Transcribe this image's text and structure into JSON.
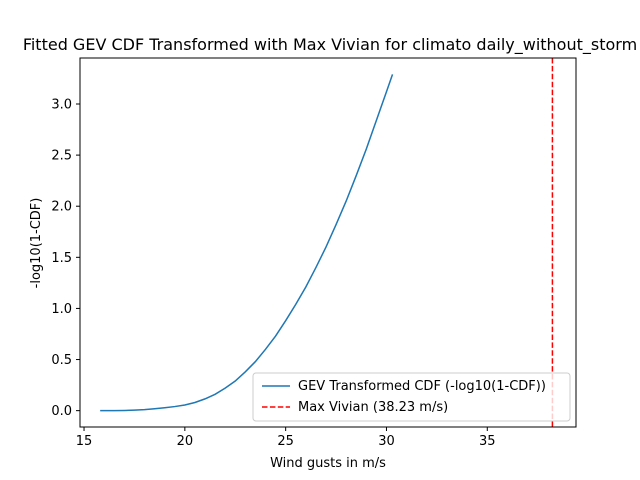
{
  "chart_data": {
    "type": "line",
    "title": "Fitted GEV CDF Transformed with Max Vivian for climato daily_without_storm",
    "xlabel": "Wind gusts in m/s",
    "ylabel": "-log10(1-CDF)",
    "xlim": [
      14.8,
      39.4
    ],
    "ylim": [
      -0.16,
      3.45
    ],
    "xticks": [
      15,
      20,
      25,
      30,
      35
    ],
    "xtick_labels": [
      "15",
      "20",
      "25",
      "30",
      "35"
    ],
    "yticks": [
      0.0,
      0.5,
      1.0,
      1.5,
      2.0,
      2.5,
      3.0
    ],
    "ytick_labels": [
      "0.0",
      "0.5",
      "1.0",
      "1.5",
      "2.0",
      "2.5",
      "3.0"
    ],
    "grid": false,
    "legend_position": "lower right",
    "series": [
      {
        "name": "GEV Transformed CDF (-log10(1-CDF))",
        "style": "solid",
        "color": "#1f77b4",
        "x": [
          15.8,
          16.5,
          17.0,
          17.5,
          18.0,
          18.5,
          19.0,
          19.5,
          20.0,
          20.5,
          21.0,
          21.5,
          22.0,
          22.5,
          23.0,
          23.5,
          24.0,
          24.5,
          25.0,
          25.5,
          26.0,
          26.5,
          27.0,
          27.5,
          28.0,
          28.5,
          29.0,
          29.5,
          30.0,
          30.3
        ],
        "y": [
          0.0,
          0.0,
          0.002,
          0.005,
          0.01,
          0.018,
          0.028,
          0.04,
          0.055,
          0.08,
          0.115,
          0.16,
          0.22,
          0.29,
          0.38,
          0.48,
          0.6,
          0.73,
          0.88,
          1.04,
          1.21,
          1.4,
          1.6,
          1.82,
          2.05,
          2.3,
          2.56,
          2.84,
          3.12,
          3.29
        ]
      },
      {
        "name": "Max Vivian (38.23 m/s)",
        "style": "dashed",
        "color": "#ff0000",
        "vline_x": 38.23
      }
    ]
  }
}
